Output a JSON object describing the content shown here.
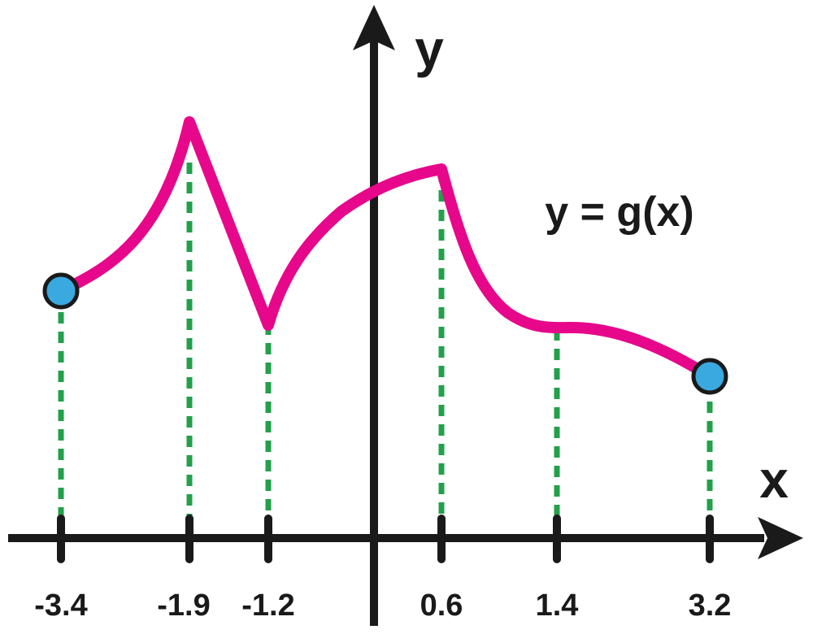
{
  "function_label": "y = g(x)",
  "axes": {
    "x_name": "x",
    "y_name": "y"
  },
  "ticks": [
    {
      "value": -3.4,
      "label": "-3.4"
    },
    {
      "value": -1.9,
      "label": "-1.9"
    },
    {
      "value": -1.2,
      "label": "-1.2"
    },
    {
      "value": 0.6,
      "label": "0.6"
    },
    {
      "value": 1.4,
      "label": "1.4"
    },
    {
      "value": 3.2,
      "label": "3.2"
    }
  ],
  "colors": {
    "curve": "#e6078b",
    "dashed_guides": "#22a04b",
    "endpoints": "#3aa9e0",
    "axes": "#1a1a1a"
  },
  "endpoints": [
    "-3.4",
    "3.2"
  ],
  "key_points": [
    {
      "x": -3.4,
      "shape": "closed endpoint"
    },
    {
      "x": -1.9,
      "shape": "cusp maximum"
    },
    {
      "x": -1.2,
      "shape": "cusp minimum"
    },
    {
      "x": 0.6,
      "shape": "corner maximum"
    },
    {
      "x": 1.4,
      "shape": "horizontal tangent"
    },
    {
      "x": 3.2,
      "shape": "closed endpoint"
    }
  ]
}
